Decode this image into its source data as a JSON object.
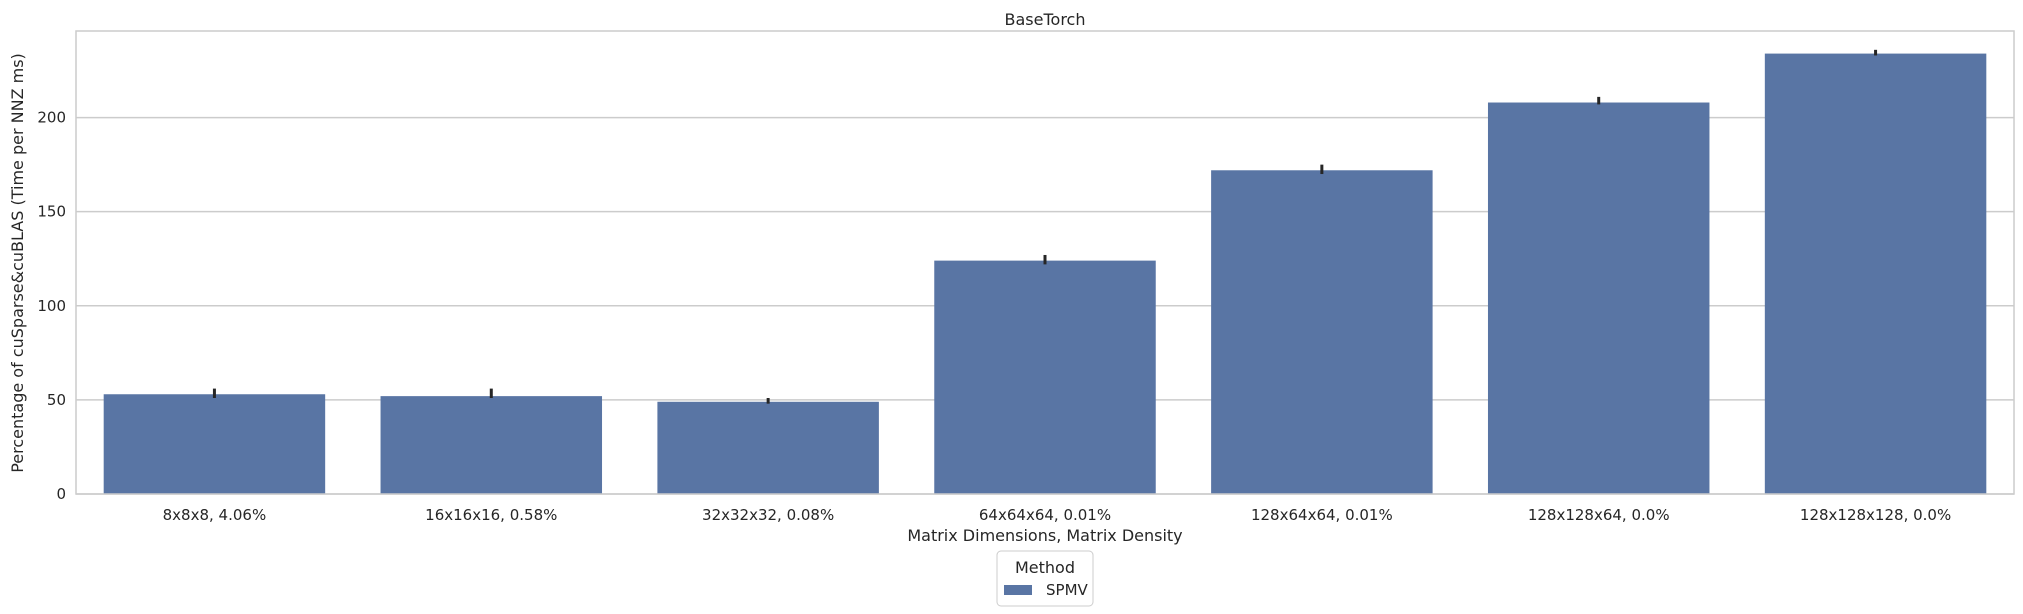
{
  "chart_data": {
    "type": "bar",
    "title": "BaseTorch",
    "xlabel": "Matrix Dimensions, Matrix Density",
    "ylabel": "Percentage of cuSparse&cuBLAS (Time per NNZ ms)",
    "categories": [
      "8x8x8, 4.06%",
      "16x16x16, 0.58%",
      "32x32x32, 0.08%",
      "64x64x64, 0.01%",
      "128x64x64, 0.01%",
      "128x128x64, 0.0%",
      "128x128x128, 0.0%"
    ],
    "series": [
      {
        "name": "SPMV",
        "color": "#5975a4",
        "values": [
          53,
          52,
          49,
          124,
          172,
          208,
          234
        ],
        "error_low": [
          51,
          51,
          48,
          122,
          170,
          207,
          233
        ],
        "error_high": [
          56,
          56,
          51,
          127,
          175,
          211,
          236
        ]
      }
    ],
    "yticks": [
      0,
      50,
      100,
      150,
      200
    ],
    "ylim": [
      0,
      246
    ],
    "grid": "horizontal",
    "legend": {
      "title": "Method",
      "placement": "bottom-center"
    }
  }
}
